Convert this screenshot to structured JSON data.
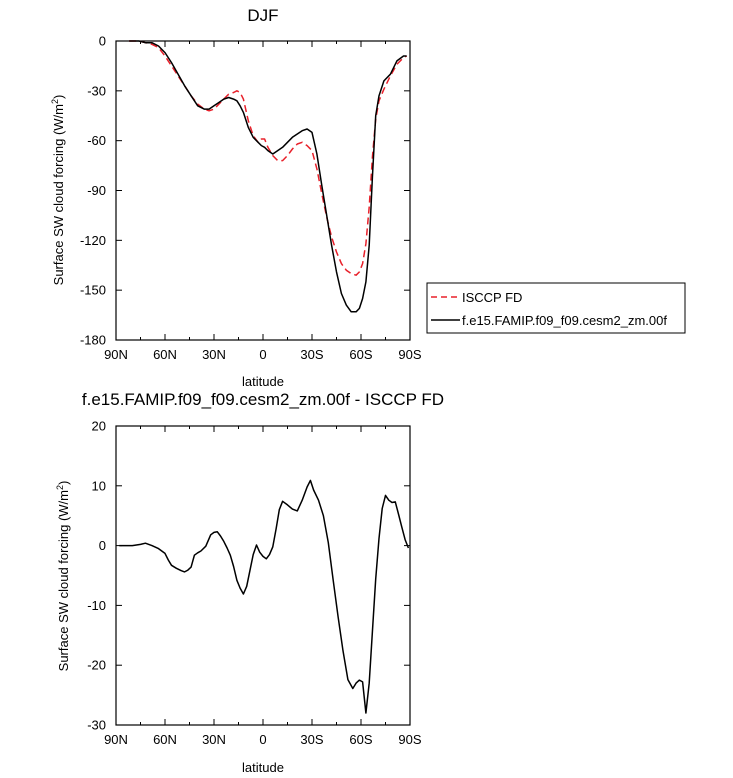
{
  "chart_data": [
    {
      "type": "line",
      "title": "DJF",
      "xlabel": "latitude",
      "ylabel": "Surface SW cloud forcing (W/m",
      "ylabel_sup": "2",
      "ylabel_end": ")",
      "xlim": [
        90,
        -90
      ],
      "ylim": [
        -180,
        0
      ],
      "xticks": [
        90,
        60,
        30,
        0,
        -30,
        -60,
        -90
      ],
      "xtick_labels": [
        "90N",
        "60N",
        "30N",
        "0",
        "30S",
        "60S",
        "90S"
      ],
      "yticks": [
        0,
        -30,
        -60,
        -90,
        -120,
        -150,
        -180
      ],
      "ytick_labels": [
        "0",
        "-30",
        "-60",
        "-90",
        "-120",
        "-150",
        "-180"
      ],
      "legend_position": "right",
      "series": [
        {
          "name": "ISCCP FD",
          "color": "#e8202a",
          "dash": "dashed",
          "x": [
            82,
            76,
            72,
            68,
            64,
            60,
            56,
            52,
            48,
            44,
            40,
            36,
            33,
            30,
            27,
            24,
            21,
            18,
            16,
            14,
            12,
            9,
            6,
            3,
            1,
            -1,
            -3,
            -6,
            -9,
            -12,
            -15,
            -18,
            -21,
            -24,
            -27,
            -30,
            -33,
            -36,
            -39,
            -42,
            -45,
            -48,
            -51,
            -54,
            -57,
            -59,
            -61,
            -63,
            -65,
            -67,
            -69,
            -71,
            -74,
            -78,
            -82,
            -86,
            -88
          ],
          "y": [
            0,
            0,
            -1,
            -2,
            -4,
            -9,
            -15,
            -21,
            -27,
            -33,
            -38,
            -41,
            -42,
            -41,
            -38,
            -35,
            -32,
            -31,
            -30,
            -31,
            -35,
            -48,
            -57,
            -61,
            -59,
            -59,
            -64,
            -69,
            -72,
            -72,
            -69,
            -65,
            -62,
            -61,
            -63,
            -66,
            -77,
            -92,
            -106,
            -118,
            -127,
            -134,
            -138,
            -140,
            -141,
            -139,
            -134,
            -122,
            -100,
            -70,
            -47,
            -36,
            -29,
            -21,
            -14,
            -10,
            -9
          ]
        },
        {
          "name": "f.e15.FAMIP.f09_f09.cesm2_zm.00f",
          "color": "#000000",
          "dash": "solid",
          "x": [
            82,
            76,
            72,
            68,
            64,
            60,
            56,
            52,
            48,
            44,
            40,
            36,
            33,
            30,
            27,
            24,
            21,
            18,
            16,
            14,
            12,
            9,
            6,
            3,
            1,
            -1,
            -3,
            -6,
            -9,
            -12,
            -15,
            -18,
            -21,
            -24,
            -27,
            -30,
            -33,
            -36,
            -39,
            -42,
            -45,
            -48,
            -51,
            -54,
            -57,
            -59,
            -61,
            -63,
            -65,
            -67,
            -69,
            -71,
            -74,
            -78,
            -82,
            -86,
            -88
          ],
          "y": [
            0,
            0,
            -1,
            -1,
            -3,
            -7,
            -13,
            -20,
            -27,
            -33,
            -39,
            -41,
            -41,
            -39,
            -37,
            -35,
            -34,
            -35,
            -36,
            -39,
            -43,
            -52,
            -58,
            -61,
            -63,
            -64,
            -66,
            -68,
            -66,
            -64,
            -61,
            -58,
            -56,
            -54,
            -53,
            -55,
            -68,
            -87,
            -105,
            -123,
            -139,
            -152,
            -159,
            -163,
            -163,
            -161,
            -155,
            -145,
            -123,
            -82,
            -45,
            -33,
            -24,
            -20,
            -12,
            -9,
            -9
          ]
        }
      ]
    },
    {
      "type": "line",
      "title": "f.e15.FAMIP.f09_f09.cesm2_zm.00f - ISCCP FD",
      "xlabel": "latitude",
      "ylabel": "Surface SW cloud forcing (W/m",
      "ylabel_sup": "2",
      "ylabel_end": ")",
      "xlim": [
        90,
        -90
      ],
      "ylim": [
        -30,
        20
      ],
      "xticks": [
        90,
        60,
        30,
        0,
        -30,
        -60,
        -90
      ],
      "xtick_labels": [
        "90N",
        "60N",
        "30N",
        "0",
        "30S",
        "60S",
        "90S"
      ],
      "yticks": [
        20,
        10,
        0,
        -10,
        -20,
        -30
      ],
      "ytick_labels": [
        "20",
        "10",
        "0",
        "-10",
        "-20",
        "-30"
      ],
      "series": [
        {
          "name": "",
          "color": "#000000",
          "dash": "solid",
          "x": [
            88,
            80,
            75,
            72,
            68,
            64,
            60,
            58,
            56,
            53,
            50,
            48,
            46,
            44,
            42,
            40,
            38,
            35,
            32,
            30,
            28,
            26,
            24,
            22,
            20,
            18,
            16,
            14,
            12,
            10,
            8,
            6,
            4,
            2,
            0,
            -2,
            -4,
            -6,
            -8,
            -10,
            -12,
            -15,
            -18,
            -21,
            -24,
            -27,
            -29,
            -31,
            -34,
            -37,
            -40,
            -43,
            -46,
            -49,
            -52,
            -55,
            -57,
            -59,
            -61,
            -63,
            -65,
            -67,
            -69,
            -71,
            -73,
            -75,
            -77,
            -79,
            -81,
            -83,
            -85,
            -87,
            -89
          ],
          "y": [
            0,
            0,
            0.2,
            0.4,
            0,
            -0.5,
            -1.3,
            -2.4,
            -3.3,
            -3.8,
            -4.2,
            -4.4,
            -4.1,
            -3.6,
            -1.6,
            -1.2,
            -0.9,
            -0.1,
            1.8,
            2.2,
            2.3,
            1.6,
            0.7,
            -0.4,
            -1.6,
            -3.5,
            -5.8,
            -7.1,
            -8.1,
            -6.8,
            -4.2,
            -1.5,
            0.1,
            -1.1,
            -1.8,
            -2.2,
            -1.5,
            -0.2,
            2.8,
            6.0,
            7.4,
            6.8,
            6.1,
            5.8,
            7.6,
            9.8,
            10.9,
            9.3,
            7.6,
            5.0,
            0.5,
            -5.8,
            -11.9,
            -17.6,
            -22.4,
            -23.9,
            -23.0,
            -22.5,
            -22.8,
            -28.0,
            -23.0,
            -14.4,
            -5.6,
            1.2,
            6.2,
            8.4,
            7.6,
            7.2,
            7.3,
            5.2,
            3.1,
            1.0,
            -0.4
          ]
        }
      ]
    }
  ]
}
